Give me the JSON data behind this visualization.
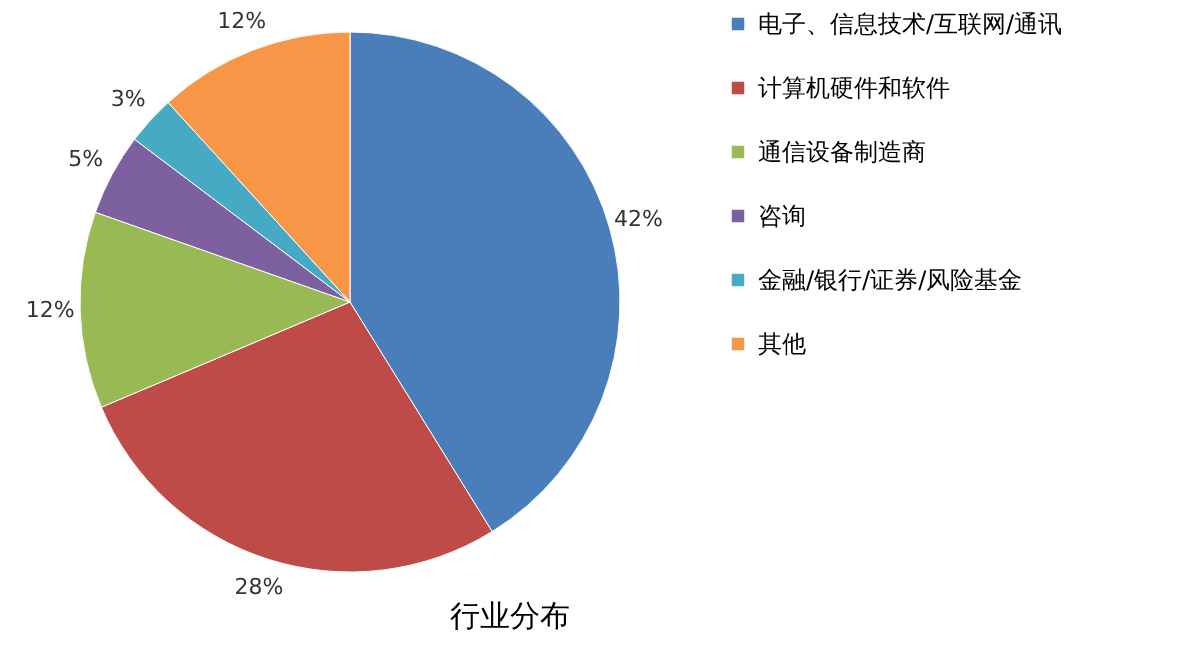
{
  "chart_data": {
    "type": "pie",
    "title": "行业分布",
    "categories": [
      "电子、信息技术/互联网/通讯",
      "计算机硬件和软件",
      "通信设备制造商",
      "咨询",
      "金融/银行/证券/风险基金",
      "其他"
    ],
    "values": [
      42,
      28,
      12,
      5,
      3,
      12
    ],
    "value_labels": [
      "42%",
      "28%",
      "12%",
      "5%",
      "3%",
      "12%"
    ],
    "colors": [
      "#4a7ebb",
      "#be4b48",
      "#98b954",
      "#7d60a0",
      "#46aac5",
      "#f79646"
    ],
    "legend": "right"
  }
}
